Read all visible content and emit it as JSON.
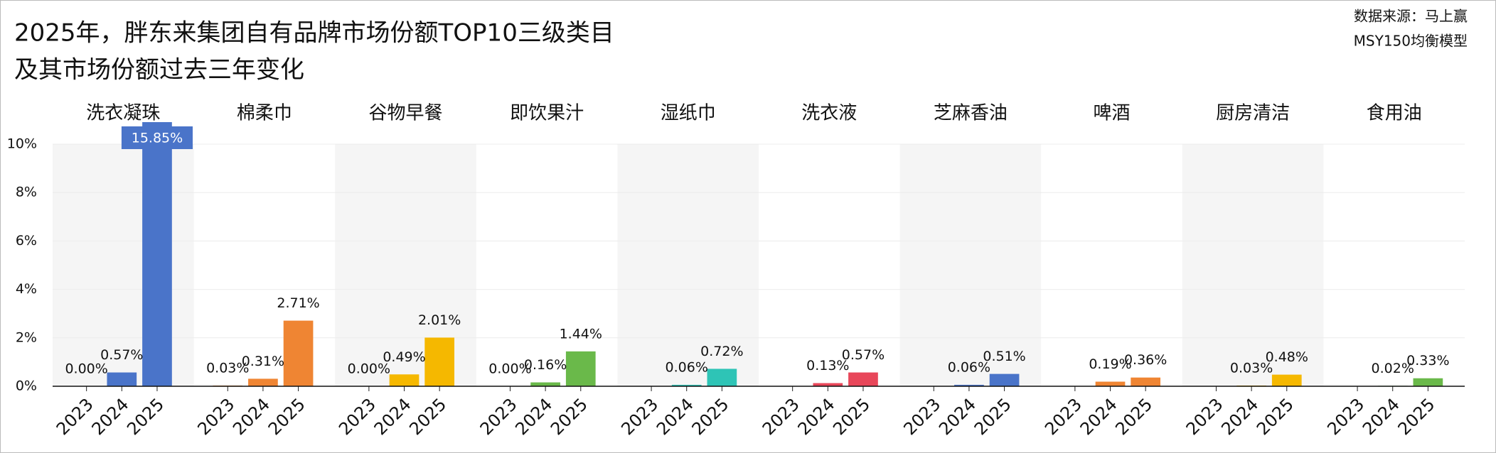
{
  "chart_data": {
    "type": "bar",
    "title_lines": [
      "2025年，胖东来集团自有品牌市场份额TOP10三级类目",
      "及其市场份额过去三年变化"
    ],
    "source_lines": [
      "数据来源：马上赢",
      "MSY150均衡模型"
    ],
    "years": [
      "2023",
      "2024",
      "2025"
    ],
    "groups": [
      {
        "name": "洗衣凝珠",
        "color": "#4a74c9",
        "values": [
          0,
          0.57,
          15.85
        ],
        "value_labels": [
          "0.00%",
          "0.57%",
          "15.85%"
        ]
      },
      {
        "name": "棉柔巾",
        "color": "#ef8533",
        "values": [
          0.03,
          0.31,
          2.71
        ],
        "value_labels": [
          "0.03%",
          "0.31%",
          "2.71%"
        ]
      },
      {
        "name": "谷物早餐",
        "color": "#f5b800",
        "values": [
          0,
          0.49,
          2.01
        ],
        "value_labels": [
          "0.00%",
          "0.49%",
          "2.01%"
        ]
      },
      {
        "name": "即饮果汁",
        "color": "#6ab94a",
        "values": [
          0,
          0.16,
          1.44
        ],
        "value_labels": [
          "0.00%",
          "0.16%",
          "1.44%"
        ]
      },
      {
        "name": "湿纸巾",
        "color": "#2ec4b6",
        "values": [
          null,
          0.06,
          0.72
        ],
        "value_labels": [
          null,
          "0.06%",
          "0.72%"
        ]
      },
      {
        "name": "洗衣液",
        "color": "#e8475a",
        "values": [
          null,
          0.13,
          0.57
        ],
        "value_labels": [
          null,
          "0.13%",
          "0.57%"
        ]
      },
      {
        "name": "芝麻香油",
        "color": "#4a74c9",
        "values": [
          null,
          0.06,
          0.51
        ],
        "value_labels": [
          null,
          "0.06%",
          "0.51%"
        ]
      },
      {
        "name": "啤酒",
        "color": "#ef8533",
        "values": [
          null,
          0.19,
          0.36
        ],
        "value_labels": [
          null,
          "0.19%",
          "0.36%"
        ]
      },
      {
        "name": "厨房清洁",
        "color": "#f5b800",
        "values": [
          null,
          0.03,
          0.48
        ],
        "value_labels": [
          null,
          "0.03%",
          "0.48%"
        ]
      },
      {
        "name": "食用油",
        "color": "#6ab94a",
        "values": [
          null,
          0.02,
          0.33
        ],
        "value_labels": [
          null,
          "0.02%",
          "0.33%"
        ]
      }
    ],
    "ylim": [
      0,
      10
    ],
    "yticks": [
      {
        "value": 0,
        "label": "0%"
      },
      {
        "value": 2,
        "label": "2%"
      },
      {
        "value": 4,
        "label": "4%"
      },
      {
        "value": 6,
        "label": "6%"
      },
      {
        "value": 8,
        "label": "8%"
      },
      {
        "value": 10,
        "label": "10%"
      }
    ],
    "grid": true
  }
}
